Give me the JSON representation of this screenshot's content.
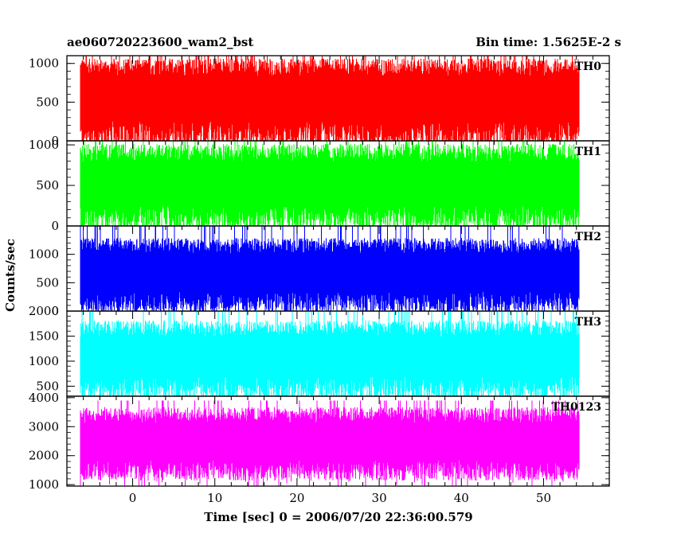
{
  "header": {
    "left_title": "ae060720223600_wam2_bst",
    "right_title": "Bin time: 1.5625E-2 s"
  },
  "chart_data": {
    "type": "line",
    "title": "ae060720223600_wam2_bst",
    "subtitle": "Bin time: 1.5625E-2 s",
    "xlabel": "Time [sec] 0 = 2006/07/20 22:36:00.579",
    "ylabel": "Counts/sec",
    "xlim": [
      -8,
      58
    ],
    "x_ticks": [
      0,
      10,
      20,
      30,
      40,
      50
    ],
    "x_tick_labels": [
      "0",
      "10",
      "20",
      "30",
      "40",
      "50"
    ],
    "data_x_range": [
      -8,
      56
    ],
    "bin_time": 0.015625,
    "panels": [
      {
        "name": "TH0",
        "color": "#ff0000",
        "ylim": [
          0,
          1100
        ],
        "y_ticks": [
          0,
          500,
          1000
        ],
        "y_tick_labels": [
          "0",
          "500",
          "1000"
        ],
        "baseline": 500,
        "low_mean": 60,
        "high_mean": 950,
        "max": 1100
      },
      {
        "name": "TH1",
        "color": "#00ff00",
        "ylim": [
          0,
          1050
        ],
        "y_ticks": [
          0,
          500,
          1000
        ],
        "y_tick_labels": [
          "0",
          "500",
          "1000"
        ],
        "baseline": 450,
        "low_mean": 100,
        "high_mean": 900,
        "max": 1050
      },
      {
        "name": "TH2",
        "color": "#0000ff",
        "ylim": [
          0,
          1500
        ],
        "y_ticks": [
          0,
          500,
          1000
        ],
        "y_tick_labels": [
          "0",
          "500",
          "1000"
        ],
        "baseline": 600,
        "low_mean": 150,
        "high_mean": 1150,
        "max": 1500
      },
      {
        "name": "TH3",
        "color": "#00ffff",
        "ylim": [
          300,
          2000
        ],
        "y_ticks": [
          500,
          1000,
          1500,
          2000
        ],
        "y_tick_labels": [
          "500",
          "1000",
          "1500",
          "2000"
        ],
        "baseline": 1000,
        "low_mean": 450,
        "high_mean": 1650,
        "max": 2000
      },
      {
        "name": "TH0123",
        "color": "#ff00ff",
        "ylim": [
          950,
          4050
        ],
        "y_ticks": [
          1000,
          2000,
          3000,
          4000
        ],
        "y_tick_labels": [
          "1000",
          "2000",
          "3000",
          "4000"
        ],
        "baseline": 2300,
        "low_mean": 1500,
        "high_mean": 3400,
        "max": 3900
      }
    ]
  }
}
